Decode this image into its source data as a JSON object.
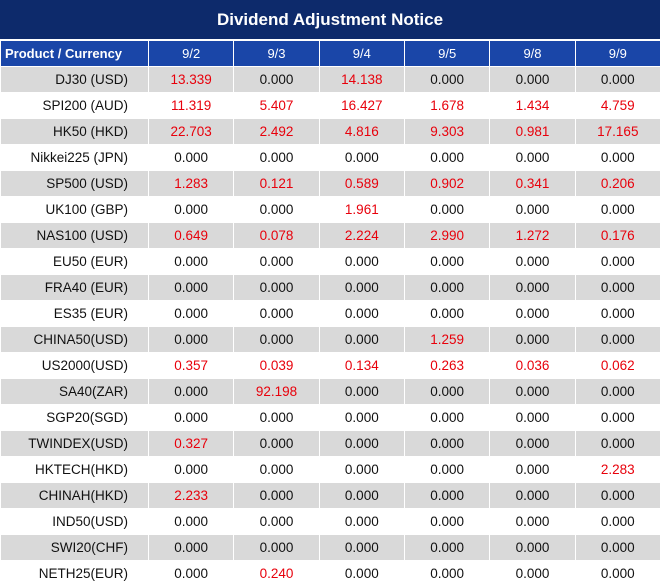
{
  "title": "Dividend Adjustment Notice",
  "header": {
    "product_label": "Product / Currency",
    "dates": [
      "9/2",
      "9/3",
      "9/4",
      "9/5",
      "9/8",
      "9/9"
    ]
  },
  "colors": {
    "title_bg": "#0d2a6b",
    "header_bg": "#1a46a8",
    "alt_row_bg": "#d9d9d9",
    "nonzero_value": "#e8000b",
    "zero_value": "#111111"
  },
  "rows": [
    {
      "product": "DJ30 (USD)",
      "values": [
        "13.339",
        "0.000",
        "14.138",
        "0.000",
        "0.000",
        "0.000"
      ]
    },
    {
      "product": "SPI200 (AUD)",
      "values": [
        "11.319",
        "5.407",
        "16.427",
        "1.678",
        "1.434",
        "4.759"
      ]
    },
    {
      "product": "HK50 (HKD)",
      "values": [
        "22.703",
        "2.492",
        "4.816",
        "9.303",
        "0.981",
        "17.165"
      ]
    },
    {
      "product": "Nikkei225 (JPN)",
      "values": [
        "0.000",
        "0.000",
        "0.000",
        "0.000",
        "0.000",
        "0.000"
      ]
    },
    {
      "product": "SP500 (USD)",
      "values": [
        "1.283",
        "0.121",
        "0.589",
        "0.902",
        "0.341",
        "0.206"
      ]
    },
    {
      "product": "UK100 (GBP)",
      "values": [
        "0.000",
        "0.000",
        "1.961",
        "0.000",
        "0.000",
        "0.000"
      ]
    },
    {
      "product": "NAS100 (USD)",
      "values": [
        "0.649",
        "0.078",
        "2.224",
        "2.990",
        "1.272",
        "0.176"
      ]
    },
    {
      "product": "EU50 (EUR)",
      "values": [
        "0.000",
        "0.000",
        "0.000",
        "0.000",
        "0.000",
        "0.000"
      ]
    },
    {
      "product": "FRA40 (EUR)",
      "values": [
        "0.000",
        "0.000",
        "0.000",
        "0.000",
        "0.000",
        "0.000"
      ]
    },
    {
      "product": "ES35 (EUR)",
      "values": [
        "0.000",
        "0.000",
        "0.000",
        "0.000",
        "0.000",
        "0.000"
      ]
    },
    {
      "product": "CHINA50(USD)",
      "values": [
        "0.000",
        "0.000",
        "0.000",
        "1.259",
        "0.000",
        "0.000"
      ]
    },
    {
      "product": "US2000(USD)",
      "values": [
        "0.357",
        "0.039",
        "0.134",
        "0.263",
        "0.036",
        "0.062"
      ]
    },
    {
      "product": "SA40(ZAR)",
      "values": [
        "0.000",
        "92.198",
        "0.000",
        "0.000",
        "0.000",
        "0.000"
      ]
    },
    {
      "product": "SGP20(SGD)",
      "values": [
        "0.000",
        "0.000",
        "0.000",
        "0.000",
        "0.000",
        "0.000"
      ]
    },
    {
      "product": "TWINDEX(USD)",
      "values": [
        "0.327",
        "0.000",
        "0.000",
        "0.000",
        "0.000",
        "0.000"
      ]
    },
    {
      "product": "HKTECH(HKD)",
      "values": [
        "0.000",
        "0.000",
        "0.000",
        "0.000",
        "0.000",
        "2.283"
      ]
    },
    {
      "product": "CHINAH(HKD)",
      "values": [
        "2.233",
        "0.000",
        "0.000",
        "0.000",
        "0.000",
        "0.000"
      ]
    },
    {
      "product": "IND50(USD)",
      "values": [
        "0.000",
        "0.000",
        "0.000",
        "0.000",
        "0.000",
        "0.000"
      ]
    },
    {
      "product": "SWI20(CHF)",
      "values": [
        "0.000",
        "0.000",
        "0.000",
        "0.000",
        "0.000",
        "0.000"
      ]
    },
    {
      "product": "NETH25(EUR)",
      "values": [
        "0.000",
        "0.240",
        "0.000",
        "0.000",
        "0.000",
        "0.000"
      ]
    }
  ]
}
